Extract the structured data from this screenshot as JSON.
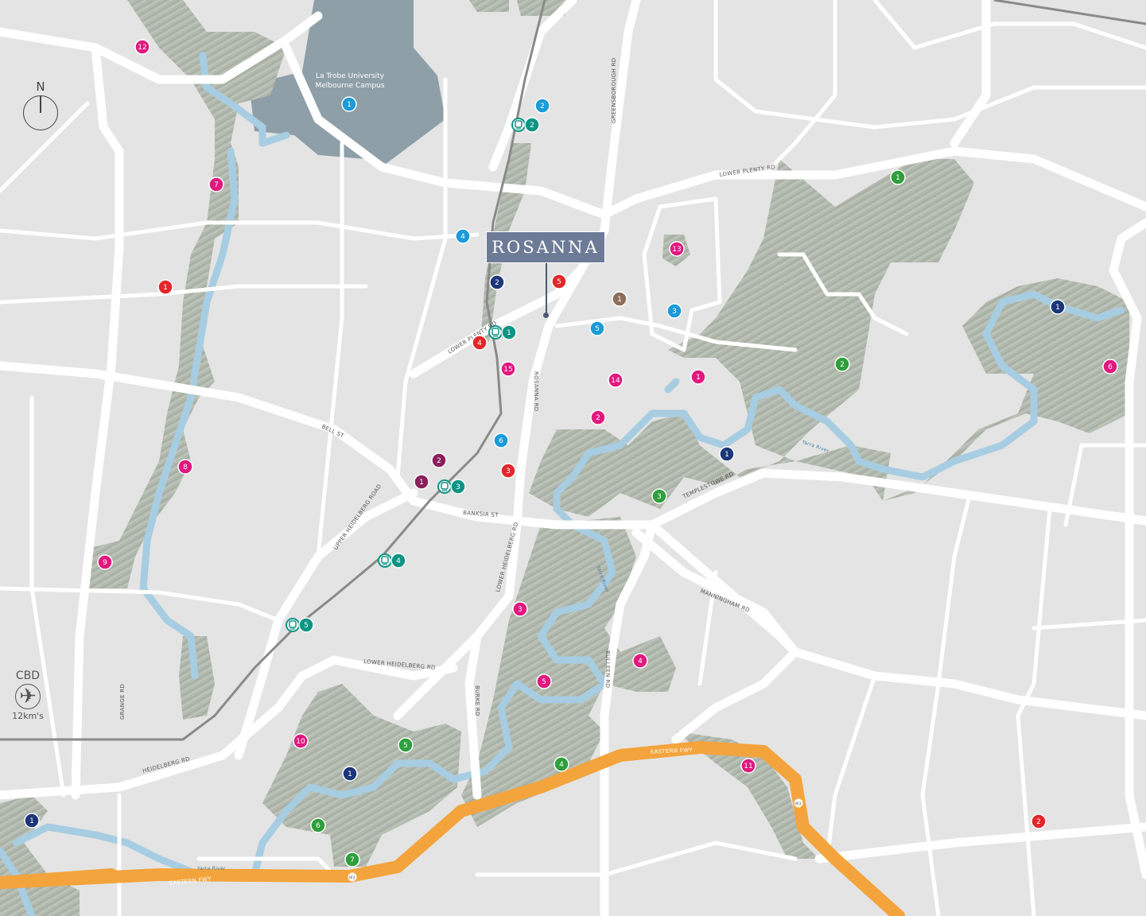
{
  "title": "ROSANNA",
  "campus_label": [
    "La Trobe University",
    "Melbourne Campus"
  ],
  "compass": {
    "label": "N",
    "icon": "north-arrow-icon"
  },
  "cbd": {
    "label": "CBD",
    "distance": "12km's",
    "icon": "plane-icon"
  },
  "road_labels": {
    "lower_plenty_rd_east": "LOWER PLENTY RD",
    "lower_plenty_rd_west": "LOWER PLENTY RD",
    "greensborough_rd": "GREENSBOROUGH RD",
    "rosanna_rd": "ROSANNA RD",
    "bell_st": "BELL ST",
    "upper_heidelberg_rd": "UPPER HEIDELBERG ROAD",
    "banksia_st": "BANKSIA ST",
    "templestowe_rd": "TEMPLESTOWE RD",
    "lower_heidelberg_rd_a": "LOWER HEIDELBERG RD",
    "lower_heidelberg_rd_b": "LOWER HEIDELBERG RD",
    "manningham_rd": "MANNINGHAM RD",
    "bulleen_rd": "BULLEEN RD",
    "burke_rd": "BURKE RD",
    "grange_rd": "GRANGE RD",
    "heidelberg_rd": "HEIDELBERG RD",
    "eastern_fwy_a": "EASTERN FWY",
    "eastern_fwy_b": "EASTERN FWY",
    "yarra_river_a": "Yarra River",
    "yarra_river_b": "Yarra River",
    "yarra_river_c": "Yarra River",
    "m3_a": "M3",
    "m3_b": "M3"
  },
  "category_colors": {
    "pink": "#e1187f",
    "red": "#e2262b",
    "lightblue": "#1b9bd7",
    "navy": "#1d3679",
    "teal": "#0f9484",
    "green": "#2f9f3d",
    "purple": "#8a1f5b",
    "brown": "#8d6e5a"
  },
  "colors": {
    "background": "#e4e4e4",
    "road": "#ffffff",
    "park": "#b2b9ae",
    "river": "#a7cde2",
    "freeway": "#f4a43c",
    "campus": "#8e9fa8",
    "label_box": "#6e7b97"
  },
  "markers": [
    {
      "category": "pink",
      "label": "12"
    },
    {
      "category": "pink",
      "label": "7"
    },
    {
      "category": "pink",
      "label": "1"
    },
    {
      "category": "pink",
      "label": "2"
    },
    {
      "category": "pink",
      "label": "3"
    },
    {
      "category": "pink",
      "label": "4"
    },
    {
      "category": "pink",
      "label": "5"
    },
    {
      "category": "pink",
      "label": "6"
    },
    {
      "category": "pink",
      "label": "8"
    },
    {
      "category": "pink",
      "label": "9"
    },
    {
      "category": "pink",
      "label": "10"
    },
    {
      "category": "pink",
      "label": "11"
    },
    {
      "category": "pink",
      "label": "13"
    },
    {
      "category": "pink",
      "label": "14"
    },
    {
      "category": "pink",
      "label": "15"
    },
    {
      "category": "red",
      "label": "1"
    },
    {
      "category": "red",
      "label": "2"
    },
    {
      "category": "red",
      "label": "3"
    },
    {
      "category": "red",
      "label": "4"
    },
    {
      "category": "red",
      "label": "5"
    },
    {
      "category": "lightblue",
      "label": "1"
    },
    {
      "category": "lightblue",
      "label": "2"
    },
    {
      "category": "lightblue",
      "label": "3"
    },
    {
      "category": "lightblue",
      "label": "4"
    },
    {
      "category": "lightblue",
      "label": "5"
    },
    {
      "category": "lightblue",
      "label": "6"
    },
    {
      "category": "navy",
      "label": "1"
    },
    {
      "category": "navy",
      "label": "1"
    },
    {
      "category": "navy",
      "label": "1"
    },
    {
      "category": "navy",
      "label": "1"
    },
    {
      "category": "navy",
      "label": "2"
    },
    {
      "category": "teal",
      "label": "1",
      "icon": "train-icon"
    },
    {
      "category": "teal",
      "label": "2",
      "icon": "train-icon"
    },
    {
      "category": "teal",
      "label": "3",
      "icon": "train-icon"
    },
    {
      "category": "teal",
      "label": "4",
      "icon": "train-icon"
    },
    {
      "category": "teal",
      "label": "5",
      "icon": "train-icon"
    },
    {
      "category": "green",
      "label": "1"
    },
    {
      "category": "green",
      "label": "2"
    },
    {
      "category": "green",
      "label": "3"
    },
    {
      "category": "green",
      "label": "4"
    },
    {
      "category": "green",
      "label": "5"
    },
    {
      "category": "green",
      "label": "6"
    },
    {
      "category": "green",
      "label": "7"
    },
    {
      "category": "purple",
      "label": "1"
    },
    {
      "category": "purple",
      "label": "2"
    },
    {
      "category": "brown",
      "label": "1"
    }
  ]
}
